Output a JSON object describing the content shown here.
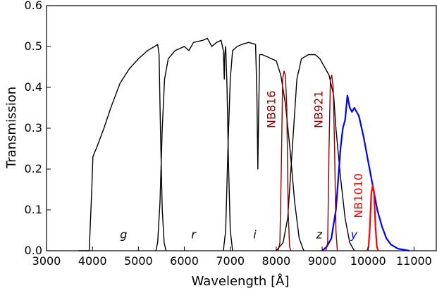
{
  "colors": {
    "g": "#000000",
    "r": "#000000",
    "i": "#000000",
    "z": "#000000",
    "y": "#0000ff",
    "NB816": "#8b0000",
    "NB921": "#8b0000",
    "NB1010": "#ff0000"
  },
  "chart_data": {
    "type": "line",
    "title": "",
    "xlabel": "Wavelength [Å]",
    "ylabel": "Transmission",
    "xlim": [
      3000,
      11500
    ],
    "ylim": [
      0.0,
      0.6
    ],
    "xticks": [
      "3000",
      "4000",
      "5000",
      "6000",
      "7000",
      "8000",
      "9000",
      "10000",
      "11000"
    ],
    "yticks": [
      "0.0",
      "0.1",
      "0.2",
      "0.3",
      "0.4",
      "0.5",
      "0.6"
    ],
    "grid": false,
    "legend": "none",
    "series": [
      {
        "name": "g",
        "label_pos": [
          4600,
          0.03
        ],
        "label_style": "italic",
        "points": [
          [
            3700,
            0
          ],
          [
            3930,
            0
          ],
          [
            3985,
            0.15
          ],
          [
            4010,
            0.23
          ],
          [
            4100,
            0.255
          ],
          [
            4250,
            0.3
          ],
          [
            4400,
            0.35
          ],
          [
            4600,
            0.41
          ],
          [
            4800,
            0.445
          ],
          [
            5000,
            0.47
          ],
          [
            5200,
            0.49
          ],
          [
            5350,
            0.5
          ],
          [
            5420,
            0.505
          ],
          [
            5450,
            0.48
          ],
          [
            5480,
            0.3
          ],
          [
            5520,
            0.1
          ],
          [
            5560,
            0.02
          ],
          [
            5600,
            0
          ]
        ]
      },
      {
        "name": "r",
        "label_pos": [
          6150,
          0.03
        ],
        "label_style": "italic",
        "points": [
          [
            5380,
            0
          ],
          [
            5420,
            0.02
          ],
          [
            5470,
            0.12
          ],
          [
            5520,
            0.3
          ],
          [
            5570,
            0.42
          ],
          [
            5650,
            0.47
          ],
          [
            5800,
            0.49
          ],
          [
            6000,
            0.5
          ],
          [
            6100,
            0.49
          ],
          [
            6200,
            0.51
          ],
          [
            6400,
            0.515
          ],
          [
            6500,
            0.52
          ],
          [
            6600,
            0.5
          ],
          [
            6700,
            0.51
          ],
          [
            6800,
            0.515
          ],
          [
            6850,
            0.49
          ],
          [
            6870,
            0.42
          ],
          [
            6880,
            0.48
          ],
          [
            6900,
            0.5
          ],
          [
            6930,
            0.4
          ],
          [
            6960,
            0.22
          ],
          [
            7000,
            0.05
          ],
          [
            7050,
            0
          ]
        ]
      },
      {
        "name": "i",
        "label_pos": [
          7500,
          0.03
        ],
        "label_style": "italic",
        "points": [
          [
            6850,
            0
          ],
          [
            6900,
            0.05
          ],
          [
            6950,
            0.25
          ],
          [
            7000,
            0.42
          ],
          [
            7050,
            0.49
          ],
          [
            7150,
            0.5
          ],
          [
            7250,
            0.505
          ],
          [
            7400,
            0.51
          ],
          [
            7550,
            0.505
          ],
          [
            7580,
            0.38
          ],
          [
            7600,
            0.2
          ],
          [
            7620,
            0.35
          ],
          [
            7640,
            0.48
          ],
          [
            7700,
            0.48
          ],
          [
            7800,
            0.475
          ],
          [
            8000,
            0.465
          ],
          [
            8100,
            0.43
          ],
          [
            8200,
            0.36
          ],
          [
            8300,
            0.25
          ],
          [
            8400,
            0.12
          ],
          [
            8500,
            0.03
          ],
          [
            8600,
            0
          ]
        ]
      },
      {
        "name": "z",
        "label_pos": [
          8870,
          0.03
        ],
        "label_style": "italic",
        "points": [
          [
            8000,
            0
          ],
          [
            8150,
            0.02
          ],
          [
            8250,
            0.08
          ],
          [
            8350,
            0.25
          ],
          [
            8450,
            0.42
          ],
          [
            8550,
            0.47
          ],
          [
            8700,
            0.48
          ],
          [
            8850,
            0.48
          ],
          [
            8950,
            0.47
          ],
          [
            9050,
            0.45
          ],
          [
            9150,
            0.43
          ],
          [
            9250,
            0.38
          ],
          [
            9300,
            0.3
          ],
          [
            9400,
            0.18
          ],
          [
            9500,
            0.08
          ],
          [
            9600,
            0.02
          ],
          [
            9700,
            0
          ]
        ]
      },
      {
        "name": "y",
        "label_pos": [
          9620,
          0.03
        ],
        "label_style": "italic",
        "points": [
          [
            9000,
            0
          ],
          [
            9100,
            0.01
          ],
          [
            9200,
            0.03
          ],
          [
            9300,
            0.1
          ],
          [
            9400,
            0.25
          ],
          [
            9450,
            0.3
          ],
          [
            9500,
            0.32
          ],
          [
            9550,
            0.38
          ],
          [
            9600,
            0.35
          ],
          [
            9650,
            0.34
          ],
          [
            9700,
            0.35
          ],
          [
            9800,
            0.33
          ],
          [
            9900,
            0.28
          ],
          [
            10000,
            0.22
          ],
          [
            10100,
            0.16
          ],
          [
            10200,
            0.1
          ],
          [
            10300,
            0.06
          ],
          [
            10400,
            0.03
          ],
          [
            10500,
            0.015
          ],
          [
            10650,
            0.005
          ],
          [
            10900,
            0
          ]
        ]
      },
      {
        "name": "NB816",
        "label_pos": [
          7980,
          0.3
        ],
        "label_rotate": -90,
        "points": [
          [
            8040,
            0
          ],
          [
            8080,
            0.02
          ],
          [
            8110,
            0.2
          ],
          [
            8140,
            0.42
          ],
          [
            8170,
            0.44
          ],
          [
            8200,
            0.43
          ],
          [
            8230,
            0.35
          ],
          [
            8260,
            0.1
          ],
          [
            8290,
            0.01
          ],
          [
            8320,
            0
          ]
        ]
      },
      {
        "name": "NB921",
        "label_pos": [
          9010,
          0.3
        ],
        "label_rotate": -90,
        "points": [
          [
            9080,
            0
          ],
          [
            9120,
            0.02
          ],
          [
            9150,
            0.25
          ],
          [
            9180,
            0.42
          ],
          [
            9210,
            0.43
          ],
          [
            9240,
            0.4
          ],
          [
            9270,
            0.25
          ],
          [
            9300,
            0.05
          ],
          [
            9330,
            0
          ]
        ]
      },
      {
        "name": "NB1010",
        "label_pos": [
          9870,
          0.08
        ],
        "label_rotate": -90,
        "points": [
          [
            9980,
            0
          ],
          [
            10010,
            0.01
          ],
          [
            10040,
            0.06
          ],
          [
            10070,
            0.14
          ],
          [
            10100,
            0.16
          ],
          [
            10130,
            0.14
          ],
          [
            10160,
            0.06
          ],
          [
            10190,
            0.01
          ],
          [
            10220,
            0
          ]
        ]
      }
    ]
  }
}
